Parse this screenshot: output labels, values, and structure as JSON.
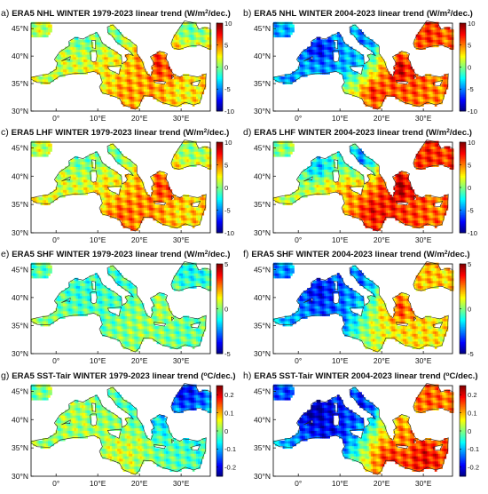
{
  "figure": {
    "colormap": [
      "#00007f",
      "#0000ff",
      "#007fff",
      "#00ffff",
      "#7fff7f",
      "#ffff00",
      "#ff7f00",
      "#ff0000",
      "#7f0000"
    ],
    "land_color": "#ffffff",
    "no_data_color": "#ffffff"
  },
  "axes": {
    "lon_ticks": [
      "0°",
      "10°E",
      "20°E",
      "30°E"
    ],
    "lat_ticks": [
      "45°N",
      "40°N",
      "35°N",
      "30°N"
    ]
  },
  "panels": [
    {
      "id": "a",
      "letter": "a)",
      "title": "ERA5 NHL WINTER 1979-2023 linear trend (W/m",
      "title_sup": "2",
      "title_end": "/dec.)",
      "colorbar": [
        "10",
        "5",
        "0",
        "-5",
        "-10"
      ],
      "vmin": -10,
      "vmax": 10,
      "features": [
        {
          "lon": 20,
          "lat": 36,
          "value": 4
        },
        {
          "lon": 27,
          "lat": 37.5,
          "value": 6
        },
        {
          "lon": 17,
          "lat": 34,
          "value": 5
        },
        {
          "lon": 12,
          "lat": 38,
          "value": 3
        },
        {
          "lon": -2,
          "lat": 37,
          "value": 1
        },
        {
          "lon": 5,
          "lat": 40,
          "value": 1.5
        },
        {
          "lon": 30,
          "lat": 34,
          "value": 2
        },
        {
          "lon": 6,
          "lat": 43,
          "value": -1.5
        },
        {
          "lon": 14,
          "lat": 43,
          "value": -1
        },
        {
          "lon": 32,
          "lat": 45,
          "value": -1
        },
        {
          "lon": 24,
          "lat": 38.5,
          "value": 8
        },
        {
          "lon": 10,
          "lat": 35,
          "value": 2.5
        }
      ]
    },
    {
      "id": "b",
      "letter": "b)",
      "title": "ERA5 NHL WINTER 2004-2023 linear trend (W/m",
      "title_sup": "2",
      "title_end": "/dec.)",
      "colorbar": [
        "10",
        "5",
        "0",
        "-5",
        "-10"
      ],
      "vmin": -10,
      "vmax": 10,
      "features": [
        {
          "lon": 5,
          "lat": 41,
          "value": -9
        },
        {
          "lon": 8,
          "lat": 37,
          "value": -6
        },
        {
          "lon": -3,
          "lat": 37,
          "value": -5
        },
        {
          "lon": 13,
          "lat": 39,
          "value": -5
        },
        {
          "lon": 16,
          "lat": 43,
          "value": -6
        },
        {
          "lon": 24,
          "lat": 37.5,
          "value": 10
        },
        {
          "lon": 27,
          "lat": 35,
          "value": 6
        },
        {
          "lon": 18,
          "lat": 33.5,
          "value": 8
        },
        {
          "lon": 33,
          "lat": 34,
          "value": 5
        },
        {
          "lon": 31,
          "lat": 44,
          "value": 7
        },
        {
          "lon": 10,
          "lat": 33.5,
          "value": 3
        },
        {
          "lon": 3,
          "lat": 38,
          "value": -4
        }
      ]
    },
    {
      "id": "c",
      "letter": "c)",
      "title": "ERA5 LHF WINTER 1979-2023 linear trend (W/m",
      "title_sup": "2",
      "title_end": "/dec.)",
      "colorbar": [
        "10",
        "5",
        "0",
        "-5",
        "-10"
      ],
      "vmin": -10,
      "vmax": 10,
      "features": [
        {
          "lon": 20,
          "lat": 35,
          "value": 5
        },
        {
          "lon": 16,
          "lat": 33.5,
          "value": 6
        },
        {
          "lon": 26,
          "lat": 38,
          "value": 7
        },
        {
          "lon": 12,
          "lat": 38,
          "value": 3
        },
        {
          "lon": 3,
          "lat": 38,
          "value": 1.5
        },
        {
          "lon": 30,
          "lat": 34,
          "value": 3
        },
        {
          "lon": 6,
          "lat": 43,
          "value": -1
        },
        {
          "lon": 14,
          "lat": 43,
          "value": -1
        },
        {
          "lon": -2,
          "lat": 36.5,
          "value": 2
        },
        {
          "lon": 32,
          "lat": 45,
          "value": 0
        }
      ]
    },
    {
      "id": "d",
      "letter": "d)",
      "title": "ERA5 LHF WINTER 2004-2023 linear trend (W/m",
      "title_sup": "2",
      "title_end": "/dec.)",
      "colorbar": [
        "10",
        "5",
        "0",
        "-5",
        "-10"
      ],
      "vmin": -10,
      "vmax": 10,
      "features": [
        {
          "lon": 5,
          "lat": 41.5,
          "value": -5
        },
        {
          "lon": 15,
          "lat": 43,
          "value": -6
        },
        {
          "lon": 24,
          "lat": 38,
          "value": 10
        },
        {
          "lon": 18,
          "lat": 34,
          "value": 8
        },
        {
          "lon": 12,
          "lat": 37,
          "value": 5
        },
        {
          "lon": 28,
          "lat": 34.5,
          "value": 6
        },
        {
          "lon": 33,
          "lat": 34.5,
          "value": 5
        },
        {
          "lon": 31,
          "lat": 44,
          "value": 7
        },
        {
          "lon": -2,
          "lat": 37,
          "value": 1
        },
        {
          "lon": 7,
          "lat": 38,
          "value": 3
        }
      ]
    },
    {
      "id": "e",
      "letter": "e)",
      "title": "ERA5 SHF WINTER 1979-2023 linear trend (W/m",
      "title_sup": "2",
      "title_end": "/dec.)",
      "colorbar": [
        "5",
        "0",
        "-5"
      ],
      "vmin": -5,
      "vmax": 5,
      "features": [
        {
          "lon": 6,
          "lat": 42,
          "value": -0.8
        },
        {
          "lon": 15,
          "lat": 42,
          "value": -0.8
        },
        {
          "lon": 20,
          "lat": 35,
          "value": 0.3
        },
        {
          "lon": 26,
          "lat": 38,
          "value": 0.5
        },
        {
          "lon": 30,
          "lat": 34,
          "value": -0.3
        },
        {
          "lon": -2,
          "lat": 37,
          "value": 0
        },
        {
          "lon": 32,
          "lat": 45,
          "value": -1.2
        }
      ]
    },
    {
      "id": "f",
      "letter": "f)",
      "title": "ERA5 SHF WINTER 2004-2023 linear trend (W/m",
      "title_sup": "2",
      "title_end": "/dec.)",
      "colorbar": [
        "5",
        "0",
        "-5"
      ],
      "vmin": -5,
      "vmax": 5,
      "features": [
        {
          "lon": 5,
          "lat": 41,
          "value": -4
        },
        {
          "lon": 8,
          "lat": 37,
          "value": -3
        },
        {
          "lon": 14,
          "lat": 42.5,
          "value": -3
        },
        {
          "lon": 24,
          "lat": 38,
          "value": 3.5
        },
        {
          "lon": 20,
          "lat": 33.5,
          "value": 1
        },
        {
          "lon": 30,
          "lat": 34,
          "value": 1.5
        },
        {
          "lon": 31,
          "lat": 44,
          "value": 2
        },
        {
          "lon": -2,
          "lat": 37,
          "value": -2
        }
      ]
    },
    {
      "id": "g",
      "letter": "g)",
      "title": "ERA5 SST-Tair WINTER 1979-2023 linear trend (",
      "title_sup": "o",
      "title_end": "C/dec.)",
      "colorbar": [
        "0.2",
        "0.1",
        "0",
        "-0.1",
        "-0.2"
      ],
      "vmin": -0.25,
      "vmax": 0.25,
      "features": [
        {
          "lon": 30,
          "lat": 45,
          "value": -0.2
        },
        {
          "lon": 24,
          "lat": 39.5,
          "value": -0.08
        },
        {
          "lon": 16,
          "lat": 34,
          "value": 0.05
        },
        {
          "lon": 6,
          "lat": 40,
          "value": 0.02
        },
        {
          "lon": 20,
          "lat": 36,
          "value": 0.04
        },
        {
          "lon": 28,
          "lat": 34,
          "value": -0.02
        }
      ]
    },
    {
      "id": "h",
      "letter": "h)",
      "title": "ERA5 SST-Tair WINTER 2004-2023 linear trend (",
      "title_sup": "o",
      "title_end": "C/dec.)",
      "colorbar": [
        "0.2",
        "0.1",
        "0",
        "-0.1",
        "-0.2"
      ],
      "vmin": -0.25,
      "vmax": 0.25,
      "features": [
        {
          "lon": 4,
          "lat": 41.5,
          "value": -0.25
        },
        {
          "lon": 8,
          "lat": 38,
          "value": -0.2
        },
        {
          "lon": 15,
          "lat": 42,
          "value": -0.2
        },
        {
          "lon": 24,
          "lat": 38,
          "value": 0.12
        },
        {
          "lon": 22,
          "lat": 33.5,
          "value": 0.18
        },
        {
          "lon": 30,
          "lat": 33.5,
          "value": 0.2
        },
        {
          "lon": 31,
          "lat": 44,
          "value": 0.15
        },
        {
          "lon": -3,
          "lat": 37,
          "value": -0.1
        }
      ]
    }
  ]
}
